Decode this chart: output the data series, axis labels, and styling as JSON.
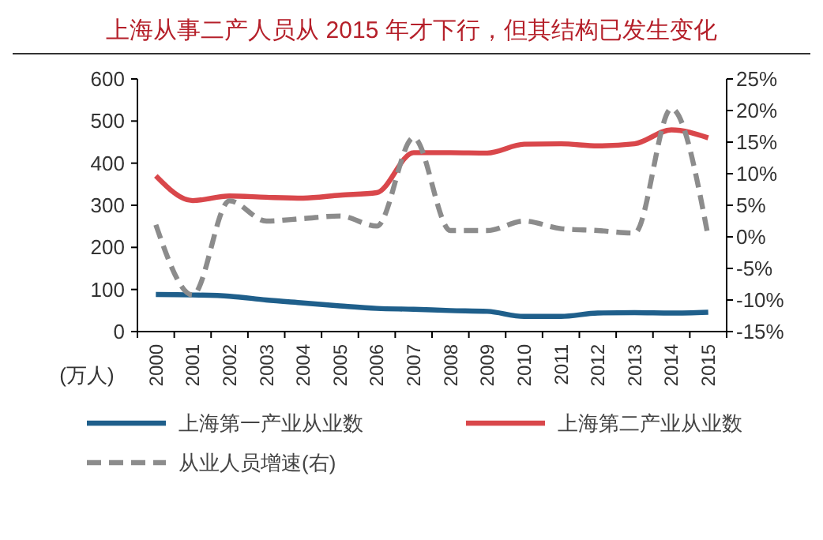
{
  "chart_data": {
    "type": "line",
    "title": "上海从事二产人员从 2015 年才下行，但其结构已发生变化",
    "ylabel": "(万人)",
    "categories": [
      "2000",
      "2001",
      "2002",
      "2003",
      "2004",
      "2005",
      "2006",
      "2007",
      "2008",
      "2009",
      "2010",
      "2011",
      "2012",
      "2013",
      "2014",
      "2015"
    ],
    "series": [
      {
        "name": "上海第一产业从业数",
        "color": "#1f5f8b",
        "values": [
          88,
          87,
          84,
          75,
          68,
          61,
          55,
          53,
          50,
          48,
          36,
          36,
          44,
          45,
          44,
          46
        ]
      },
      {
        "name": "上海第二产业从业数",
        "color": "#d9474b",
        "values": [
          370,
          311,
          322,
          319,
          317,
          324,
          330,
          425,
          425,
          424,
          445,
          446,
          441,
          446,
          479,
          460
        ]
      },
      {
        "name": "从业人员增速(右)",
        "color": "#8c8c8c",
        "axis": "y2",
        "line_style": "dashed",
        "values": [
          1.9,
          -9.2,
          5.7,
          2.5,
          2.9,
          3.3,
          1.7,
          15.7,
          1.0,
          1.0,
          2.5,
          1.3,
          1.0,
          0.6,
          20.3,
          0
        ]
      }
    ],
    "ylim": [
      0,
      600
    ],
    "yticks": [
      0,
      100,
      200,
      300,
      400,
      500,
      600
    ],
    "y2lim": [
      -15,
      25
    ],
    "y2ticks": [
      {
        "value": -15,
        "label": "-15%"
      },
      {
        "value": -10,
        "label": "-10%"
      },
      {
        "value": -5,
        "label": "-5%"
      },
      {
        "value": 0,
        "label": "0%"
      },
      {
        "value": 5,
        "label": "5%"
      },
      {
        "value": 10,
        "label": "10%"
      },
      {
        "value": 15,
        "label": "15%"
      },
      {
        "value": 20,
        "label": "20%"
      },
      {
        "value": 25,
        "label": "25%"
      }
    ],
    "grid": false,
    "legend": "bottom",
    "marker": "none",
    "line_style": "solid"
  }
}
